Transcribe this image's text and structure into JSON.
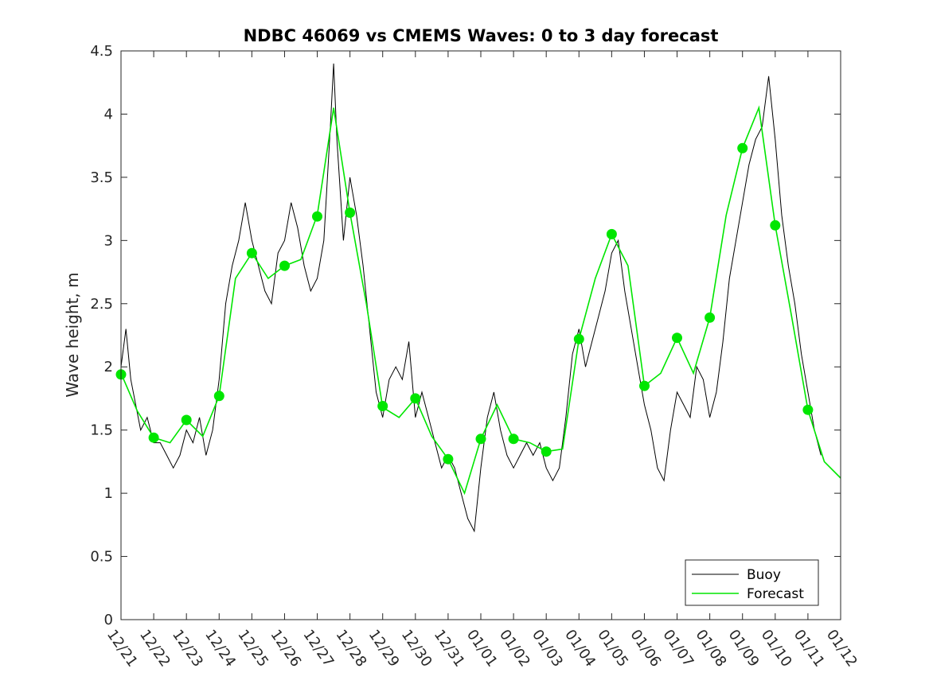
{
  "chart_data": {
    "type": "line",
    "title": "NDBC 46069 vs CMEMS Waves: 0 to 3 day forecast",
    "xlabel": "",
    "ylabel": "Wave height, m",
    "xlim": [
      0,
      22
    ],
    "ylim": [
      0,
      4.5
    ],
    "x_ticks": [
      0,
      1,
      2,
      3,
      4,
      5,
      6,
      7,
      8,
      9,
      10,
      11,
      12,
      13,
      14,
      15,
      16,
      17,
      18,
      19,
      20,
      21,
      22
    ],
    "x_tick_labels": [
      "12/21",
      "12/22",
      "12/23",
      "12/24",
      "12/25",
      "12/26",
      "12/27",
      "12/28",
      "12/29",
      "12/30",
      "12/31",
      "01/01",
      "01/02",
      "01/03",
      "01/04",
      "01/05",
      "01/06",
      "01/07",
      "01/08",
      "01/09",
      "01/10",
      "01/11",
      "01/12"
    ],
    "y_ticks": [
      0,
      0.5,
      1,
      1.5,
      2,
      2.5,
      3,
      3.5,
      4,
      4.5
    ],
    "y_tick_labels": [
      "0",
      "0.5",
      "1",
      "1.5",
      "2",
      "2.5",
      "3",
      "3.5",
      "4",
      "4.5"
    ],
    "grid": false,
    "legend_position": "bottom-right",
    "colors": {
      "buoy": "#000000",
      "forecast": "#00e600"
    },
    "series": [
      {
        "name": "Buoy",
        "x": [
          0,
          0.15,
          0.3,
          0.45,
          0.6,
          0.8,
          1.0,
          1.2,
          1.4,
          1.6,
          1.8,
          2.0,
          2.2,
          2.4,
          2.6,
          2.8,
          3.0,
          3.2,
          3.4,
          3.6,
          3.8,
          4.0,
          4.2,
          4.4,
          4.6,
          4.8,
          5.0,
          5.2,
          5.4,
          5.6,
          5.8,
          6.0,
          6.2,
          6.4,
          6.5,
          6.6,
          6.8,
          7.0,
          7.2,
          7.4,
          7.6,
          7.8,
          8.0,
          8.2,
          8.4,
          8.6,
          8.8,
          9.0,
          9.2,
          9.4,
          9.6,
          9.8,
          10.0,
          10.2,
          10.4,
          10.6,
          10.8,
          11.0,
          11.2,
          11.4,
          11.6,
          11.8,
          12.0,
          12.2,
          12.4,
          12.6,
          12.8,
          13.0,
          13.2,
          13.4,
          13.6,
          13.8,
          14.0,
          14.2,
          14.4,
          14.6,
          14.8,
          15.0,
          15.2,
          15.4,
          15.6,
          15.8,
          16.0,
          16.2,
          16.4,
          16.6,
          16.8,
          17.0,
          17.2,
          17.4,
          17.6,
          17.8,
          18.0,
          18.2,
          18.4,
          18.6,
          18.8,
          19.0,
          19.2,
          19.4,
          19.6,
          19.8,
          20.0,
          20.2,
          20.4,
          20.6,
          20.8,
          21.0,
          21.2,
          21.4
        ],
        "values": [
          2.0,
          2.3,
          1.9,
          1.7,
          1.5,
          1.6,
          1.4,
          1.4,
          1.3,
          1.2,
          1.3,
          1.5,
          1.4,
          1.6,
          1.3,
          1.5,
          1.9,
          2.5,
          2.8,
          3.0,
          3.3,
          3.0,
          2.8,
          2.6,
          2.5,
          2.9,
          3.0,
          3.3,
          3.1,
          2.8,
          2.6,
          2.7,
          3.0,
          3.9,
          4.4,
          3.8,
          3.0,
          3.5,
          3.2,
          2.8,
          2.3,
          1.8,
          1.6,
          1.9,
          2.0,
          1.9,
          2.2,
          1.6,
          1.8,
          1.6,
          1.4,
          1.2,
          1.3,
          1.2,
          1.0,
          0.8,
          0.7,
          1.2,
          1.6,
          1.8,
          1.5,
          1.3,
          1.2,
          1.3,
          1.4,
          1.3,
          1.4,
          1.2,
          1.1,
          1.2,
          1.6,
          2.1,
          2.3,
          2.0,
          2.2,
          2.4,
          2.6,
          2.9,
          3.0,
          2.6,
          2.3,
          2.0,
          1.7,
          1.5,
          1.2,
          1.1,
          1.5,
          1.8,
          1.7,
          1.6,
          2.0,
          1.9,
          1.6,
          1.8,
          2.2,
          2.7,
          3.0,
          3.3,
          3.6,
          3.8,
          3.9,
          4.3,
          3.8,
          3.2,
          2.8,
          2.5,
          2.1,
          1.8,
          1.5,
          1.3
        ]
      },
      {
        "name": "Forecast",
        "x": [
          0,
          0.5,
          1.0,
          1.5,
          2.0,
          2.5,
          3.0,
          3.5,
          4.0,
          4.5,
          5.0,
          5.5,
          6.0,
          6.5,
          7.0,
          7.5,
          8.0,
          8.5,
          9.0,
          9.5,
          10.0,
          10.5,
          11.0,
          11.5,
          12.0,
          12.5,
          13.0,
          13.5,
          14.0,
          14.5,
          15.0,
          15.5,
          16.0,
          16.5,
          17.0,
          17.5,
          18.0,
          18.5,
          19.0,
          19.5,
          20.0,
          20.5,
          21.0,
          21.5,
          22.0
        ],
        "values": [
          1.95,
          1.65,
          1.44,
          1.4,
          1.58,
          1.45,
          1.77,
          2.7,
          2.9,
          2.7,
          2.8,
          2.85,
          3.2,
          4.05,
          3.22,
          2.5,
          1.68,
          1.6,
          1.75,
          1.45,
          1.27,
          1.0,
          1.43,
          1.7,
          1.43,
          1.4,
          1.33,
          1.35,
          2.22,
          2.7,
          3.05,
          2.8,
          1.85,
          1.95,
          2.23,
          1.95,
          2.39,
          3.2,
          3.73,
          4.05,
          3.12,
          2.4,
          1.66,
          1.25,
          1.12
        ]
      }
    ],
    "markers": {
      "x": [
        0,
        1,
        2,
        3,
        4,
        5,
        6,
        7,
        8,
        9,
        10,
        11,
        12,
        13,
        14,
        15,
        16,
        17,
        18,
        19,
        20,
        21
      ],
      "values": [
        1.94,
        1.44,
        1.58,
        1.77,
        2.9,
        2.8,
        3.19,
        3.22,
        1.69,
        1.75,
        1.27,
        1.43,
        1.43,
        1.33,
        2.22,
        3.05,
        1.85,
        2.23,
        2.39,
        3.73,
        3.12,
        1.66
      ]
    }
  }
}
